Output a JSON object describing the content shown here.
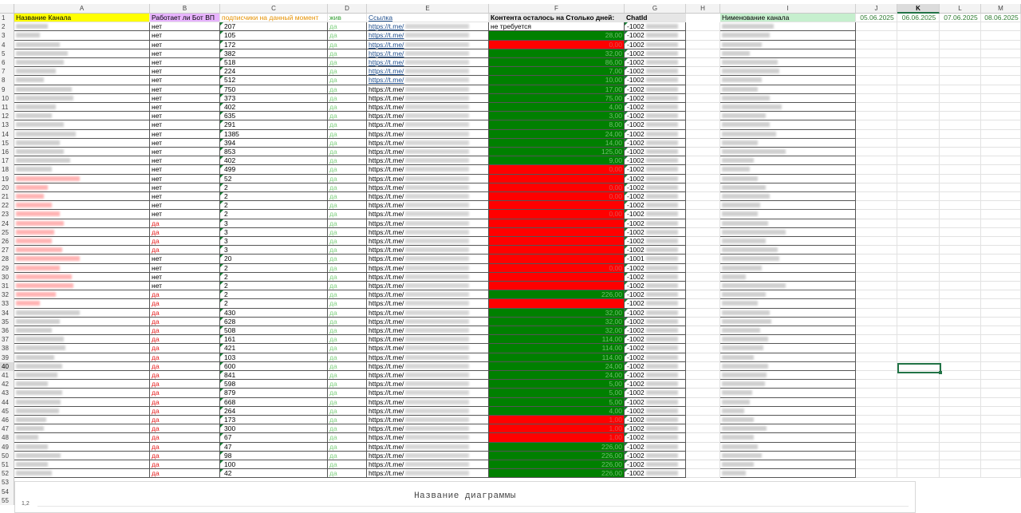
{
  "columns": [
    "A",
    "B",
    "C",
    "D",
    "E",
    "F",
    "G",
    "H",
    "I",
    "J",
    "K",
    "L",
    "M"
  ],
  "selected_column": "K",
  "selected_row": 40,
  "headers": {
    "a": "Название Канала",
    "b": "Работает ли Бот ВП",
    "c": "подписчики на данный момент",
    "d": "жив",
    "e": "Ссылка",
    "f": "Контента осталось на Столько дней:",
    "g": "ChatId",
    "i": "Нименование канала",
    "j": "05.06.2025",
    "k": "06.06.2025",
    "l": "07.06.2025",
    "m": "08.06.2025"
  },
  "header_colors": {
    "a": "#ffff00",
    "b": "#e8b4ff",
    "c": "#ffffff",
    "d": "#ffffff",
    "e": "#ffffff",
    "f": "#e6e6e6",
    "g": "#e6e6e6",
    "i": "#c6efce"
  },
  "rows": [
    {
      "n": 2,
      "bot": "нет",
      "subs": "207",
      "alive": "да",
      "link": "https://t.me/",
      "content": "не требуется",
      "fill": "none",
      "chat": "-1002"
    },
    {
      "n": 3,
      "bot": "нет",
      "subs": "105",
      "alive": "да",
      "link": "https://t.me/",
      "content": "28,00",
      "fill": "green",
      "chat": "-1002"
    },
    {
      "n": 4,
      "bot": "нет",
      "subs": "172",
      "alive": "да",
      "link": "https://t.me/",
      "content": "0,00",
      "fill": "red",
      "chat": "-1002"
    },
    {
      "n": 5,
      "bot": "нет",
      "subs": "382",
      "alive": "да",
      "link": "https://t.me/",
      "content": "32,00",
      "fill": "green",
      "chat": "-1002"
    },
    {
      "n": 6,
      "bot": "нет",
      "subs": "518",
      "alive": "да",
      "link": "https://t.me/",
      "content": "86,00",
      "fill": "green",
      "chat": "-1002"
    },
    {
      "n": 7,
      "bot": "нет",
      "subs": "224",
      "alive": "да",
      "link": "https://t.me/",
      "content": "7,00",
      "fill": "green",
      "chat": "-1002"
    },
    {
      "n": 8,
      "bot": "нет",
      "subs": "512",
      "alive": "да",
      "link": "https://t.me/",
      "content": "10,00",
      "fill": "green",
      "chat": "-1002"
    },
    {
      "n": 9,
      "bot": "нет",
      "subs": "750",
      "alive": "да",
      "link": "https://t.me/",
      "content": "17,00",
      "fill": "green",
      "chat": "-1002"
    },
    {
      "n": 10,
      "bot": "нет",
      "subs": "373",
      "alive": "да",
      "link": "https://t.me/",
      "content": "75,00",
      "fill": "green",
      "chat": "-1002"
    },
    {
      "n": 11,
      "bot": "нет",
      "subs": "402",
      "alive": "да",
      "link": "https://t.me/",
      "content": "4,00",
      "fill": "green",
      "chat": "-1002"
    },
    {
      "n": 12,
      "bot": "нет",
      "subs": "635",
      "alive": "да",
      "link": "https://t.me/",
      "content": "3,00",
      "fill": "green",
      "chat": "-1002"
    },
    {
      "n": 13,
      "bot": "нет",
      "subs": "291",
      "alive": "да",
      "link": "https://t.me/",
      "content": "8,00",
      "fill": "green",
      "chat": "-1002"
    },
    {
      "n": 14,
      "bot": "нет",
      "subs": "1385",
      "alive": "да",
      "link": "https://t.me/",
      "content": "24,00",
      "fill": "green",
      "chat": "-1002"
    },
    {
      "n": 15,
      "bot": "нет",
      "subs": "394",
      "alive": "да",
      "link": "https://t.me/",
      "content": "14,00",
      "fill": "green",
      "chat": "-1002"
    },
    {
      "n": 16,
      "bot": "нет",
      "subs": "853",
      "alive": "да",
      "link": "https://t.me/",
      "content": "125,00",
      "fill": "green",
      "chat": "-1002"
    },
    {
      "n": 17,
      "bot": "нет",
      "subs": "402",
      "alive": "да",
      "link": "https://t.me/",
      "content": "9,00",
      "fill": "green",
      "chat": "-1002"
    },
    {
      "n": 18,
      "bot": "нет",
      "subs": "499",
      "alive": "да",
      "link": "https://t.me/",
      "content": "0,00",
      "fill": "red",
      "chat": "-1002"
    },
    {
      "n": 19,
      "bot": "нет",
      "subs": "52",
      "alive": "да",
      "link": "https://t.me/",
      "content": "",
      "fill": "red",
      "chat": "-1002"
    },
    {
      "n": 20,
      "bot": "нет",
      "subs": "2",
      "alive": "да",
      "link": "https://t.me/",
      "content": "0,00",
      "fill": "red",
      "chat": "-1002"
    },
    {
      "n": 21,
      "bot": "нет",
      "subs": "2",
      "alive": "да",
      "link": "https://t.me/",
      "content": "0,00",
      "fill": "red",
      "chat": "-1002"
    },
    {
      "n": 22,
      "bot": "нет",
      "subs": "2",
      "alive": "да",
      "link": "https://t.me/",
      "content": "",
      "fill": "red",
      "chat": "-1002"
    },
    {
      "n": 23,
      "bot": "нет",
      "subs": "2",
      "alive": "да",
      "link": "https://t.me/",
      "content": "0,00",
      "fill": "red",
      "chat": "-1002"
    },
    {
      "n": 24,
      "bot": "да",
      "subs": "3",
      "alive": "да",
      "link": "https://t.me/",
      "content": "",
      "fill": "red",
      "chat": "-1002"
    },
    {
      "n": 25,
      "bot": "да",
      "subs": "3",
      "alive": "да",
      "link": "https://t.me/",
      "content": "",
      "fill": "red",
      "chat": "-1002"
    },
    {
      "n": 26,
      "bot": "да",
      "subs": "3",
      "alive": "да",
      "link": "https://t.me/",
      "content": "",
      "fill": "red",
      "chat": "-1002"
    },
    {
      "n": 27,
      "bot": "да",
      "subs": "3",
      "alive": "да",
      "link": "https://t.me/",
      "content": "",
      "fill": "red",
      "chat": "-1002"
    },
    {
      "n": 28,
      "bot": "нет",
      "subs": "20",
      "alive": "да",
      "link": "https://t.me/",
      "content": "",
      "fill": "red",
      "chat": "-1001"
    },
    {
      "n": 29,
      "bot": "нет",
      "subs": "2",
      "alive": "да",
      "link": "https://t.me/",
      "content": "0,00",
      "fill": "red",
      "chat": "-1002"
    },
    {
      "n": 30,
      "bot": "нет",
      "subs": "2",
      "alive": "да",
      "link": "https://t.me/",
      "content": "",
      "fill": "red",
      "chat": "-1002"
    },
    {
      "n": 31,
      "bot": "нет",
      "subs": "2",
      "alive": "да",
      "link": "https://t.me/",
      "content": "",
      "fill": "red",
      "chat": "-1002"
    },
    {
      "n": 32,
      "bot": "да",
      "subs": "2",
      "alive": "да",
      "link": "https://t.me/",
      "content": "226,00",
      "fill": "green",
      "chat": "-1002"
    },
    {
      "n": 33,
      "bot": "да",
      "subs": "2",
      "alive": "да",
      "link": "https://t.me/",
      "content": "",
      "fill": "red",
      "chat": "-1002"
    },
    {
      "n": 34,
      "bot": "да",
      "subs": "430",
      "alive": "да",
      "link": "https://t.me/",
      "content": "32,00",
      "fill": "green",
      "chat": "-1002"
    },
    {
      "n": 35,
      "bot": "да",
      "subs": "628",
      "alive": "да",
      "link": "https://t.me/",
      "content": "32,00",
      "fill": "green",
      "chat": "-1002"
    },
    {
      "n": 36,
      "bot": "да",
      "subs": "508",
      "alive": "да",
      "link": "https://t.me/",
      "content": "32,00",
      "fill": "green",
      "chat": "-1002"
    },
    {
      "n": 37,
      "bot": "да",
      "subs": "161",
      "alive": "да",
      "link": "https://t.me/",
      "content": "114,00",
      "fill": "green",
      "chat": "-1002"
    },
    {
      "n": 38,
      "bot": "да",
      "subs": "421",
      "alive": "да",
      "link": "https://t.me/",
      "content": "114,00",
      "fill": "green",
      "chat": "-1002"
    },
    {
      "n": 39,
      "bot": "да",
      "subs": "103",
      "alive": "да",
      "link": "https://t.me/",
      "content": "114,00",
      "fill": "green",
      "chat": "-1002"
    },
    {
      "n": 40,
      "bot": "да",
      "subs": "600",
      "alive": "да",
      "link": "https://t.me/",
      "content": "24,00",
      "fill": "green",
      "chat": "-1002"
    },
    {
      "n": 41,
      "bot": "да",
      "subs": "841",
      "alive": "да",
      "link": "https://t.me/",
      "content": "24,00",
      "fill": "green",
      "chat": "-1002"
    },
    {
      "n": 42,
      "bot": "да",
      "subs": "598",
      "alive": "да",
      "link": "https://t.me/",
      "content": "5,00",
      "fill": "green",
      "chat": "-1002"
    },
    {
      "n": 43,
      "bot": "да",
      "subs": "879",
      "alive": "да",
      "link": "https://t.me/",
      "content": "5,00",
      "fill": "green",
      "chat": "-1002"
    },
    {
      "n": 44,
      "bot": "да",
      "subs": "668",
      "alive": "да",
      "link": "https://t.me/",
      "content": "5,00",
      "fill": "green",
      "chat": "-1002"
    },
    {
      "n": 45,
      "bot": "да",
      "subs": "264",
      "alive": "да",
      "link": "https://t.me/",
      "content": "4,00",
      "fill": "green",
      "chat": "-1002"
    },
    {
      "n": 46,
      "bot": "да",
      "subs": "173",
      "alive": "да",
      "link": "https://t.me/",
      "content": "1,00",
      "fill": "red",
      "chat": "-1002"
    },
    {
      "n": 47,
      "bot": "да",
      "subs": "300",
      "alive": "да",
      "link": "https://t.me/",
      "content": "1,00",
      "fill": "red",
      "chat": "-1002"
    },
    {
      "n": 48,
      "bot": "да",
      "subs": "67",
      "alive": "да",
      "link": "https://t.me/",
      "content": "1,00",
      "fill": "red",
      "chat": "-1002"
    },
    {
      "n": 49,
      "bot": "да",
      "subs": "47",
      "alive": "да",
      "link": "https://t.me/",
      "content": "226,00",
      "fill": "green",
      "chat": "-1002"
    },
    {
      "n": 50,
      "bot": "да",
      "subs": "98",
      "alive": "да",
      "link": "https://t.me/",
      "content": "226,00",
      "fill": "green",
      "chat": "-1002"
    },
    {
      "n": 51,
      "bot": "да",
      "subs": "100",
      "alive": "да",
      "link": "https://t.me/",
      "content": "226,00",
      "fill": "green",
      "chat": "-1002"
    },
    {
      "n": 52,
      "bot": "да",
      "subs": "42",
      "alive": "да",
      "link": "https://t.me/",
      "content": "226,00",
      "fill": "green",
      "chat": "-1002"
    }
  ],
  "extra_rows": [
    53,
    54,
    55
  ],
  "chart": {
    "title": "Название диаграммы",
    "y_tick": "1,2"
  }
}
